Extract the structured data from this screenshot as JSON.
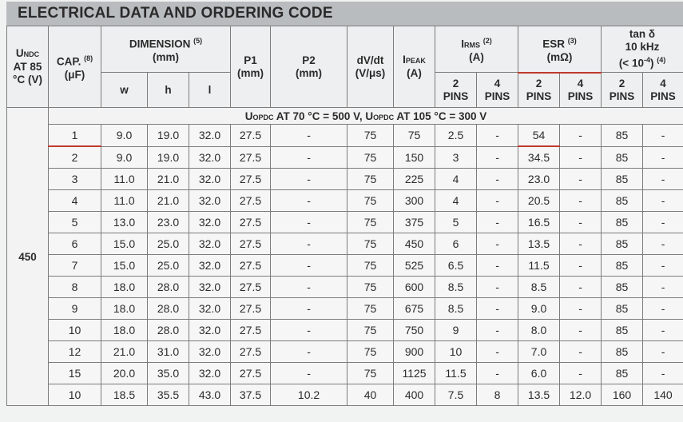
{
  "title": "ELECTRICAL DATA AND ORDERING CODE",
  "headers": {
    "undc": {
      "main": "U",
      "sub": "NDC",
      "rest": "AT 85 °C (V)"
    },
    "cap": {
      "label": "CAP.",
      "note": "(8)",
      "unit": "(μF)"
    },
    "dimension": {
      "label": "DIMENSION",
      "note": "(5)",
      "unit": "(mm)",
      "w": "w",
      "h": "h",
      "l": "l"
    },
    "p1": {
      "label": "P1",
      "unit": "(mm)"
    },
    "p2": {
      "label": "P2",
      "unit": "(mm)"
    },
    "dvdt": {
      "label": "dV/dt",
      "unit": "(V/μs)"
    },
    "ipeak": {
      "main": "I",
      "sub": "PEAK",
      "unit": "(A)"
    },
    "irms": {
      "main": "I",
      "sub": "RMS",
      "note": "(2)",
      "unit": "(A)"
    },
    "esr": {
      "label": "ESR",
      "note": "(3)",
      "unit": "(mΩ)"
    },
    "tan": {
      "label": "tan δ",
      "freq": "10 kHz",
      "unit_pre": "(< 10",
      "unit_exp": "-4",
      "unit_post": ")",
      "note": "(4)"
    },
    "pins2": "2 PINS",
    "pins4": "4 PINS"
  },
  "condition": {
    "u1": "U",
    "s1": "OPDC",
    "t1": " AT 70 °C = 500 V, ",
    "u2": "U",
    "s2": "OPDC",
    "t2": " AT 105 °C = 300 V"
  },
  "voltage": "450",
  "rows": [
    {
      "cap": "1",
      "w": "9.0",
      "h": "19.0",
      "l": "32.0",
      "p1": "27.5",
      "p2": "-",
      "dvdt": "75",
      "ipeak": "75",
      "irms2": "2.5",
      "irms4": "-",
      "esr2": "54",
      "esr4": "-",
      "tan2": "85",
      "tan4": "-"
    },
    {
      "cap": "2",
      "w": "9.0",
      "h": "19.0",
      "l": "32.0",
      "p1": "27.5",
      "p2": "-",
      "dvdt": "75",
      "ipeak": "150",
      "irms2": "3",
      "irms4": "-",
      "esr2": "34.5",
      "esr4": "-",
      "tan2": "85",
      "tan4": "-"
    },
    {
      "cap": "3",
      "w": "11.0",
      "h": "21.0",
      "l": "32.0",
      "p1": "27.5",
      "p2": "-",
      "dvdt": "75",
      "ipeak": "225",
      "irms2": "4",
      "irms4": "-",
      "esr2": "23.0",
      "esr4": "-",
      "tan2": "85",
      "tan4": "-"
    },
    {
      "cap": "4",
      "w": "11.0",
      "h": "21.0",
      "l": "32.0",
      "p1": "27.5",
      "p2": "-",
      "dvdt": "75",
      "ipeak": "300",
      "irms2": "4",
      "irms4": "-",
      "esr2": "20.5",
      "esr4": "-",
      "tan2": "85",
      "tan4": "-"
    },
    {
      "cap": "5",
      "w": "13.0",
      "h": "23.0",
      "l": "32.0",
      "p1": "27.5",
      "p2": "-",
      "dvdt": "75",
      "ipeak": "375",
      "irms2": "5",
      "irms4": "-",
      "esr2": "16.5",
      "esr4": "-",
      "tan2": "85",
      "tan4": "-"
    },
    {
      "cap": "6",
      "w": "15.0",
      "h": "25.0",
      "l": "32.0",
      "p1": "27.5",
      "p2": "-",
      "dvdt": "75",
      "ipeak": "450",
      "irms2": "6",
      "irms4": "-",
      "esr2": "13.5",
      "esr4": "-",
      "tan2": "85",
      "tan4": "-"
    },
    {
      "cap": "7",
      "w": "15.0",
      "h": "25.0",
      "l": "32.0",
      "p1": "27.5",
      "p2": "-",
      "dvdt": "75",
      "ipeak": "525",
      "irms2": "6.5",
      "irms4": "-",
      "esr2": "11.5",
      "esr4": "-",
      "tan2": "85",
      "tan4": "-"
    },
    {
      "cap": "8",
      "w": "18.0",
      "h": "28.0",
      "l": "32.0",
      "p1": "27.5",
      "p2": "-",
      "dvdt": "75",
      "ipeak": "600",
      "irms2": "8.5",
      "irms4": "-",
      "esr2": "8.5",
      "esr4": "-",
      "tan2": "85",
      "tan4": "-"
    },
    {
      "cap": "9",
      "w": "18.0",
      "h": "28.0",
      "l": "32.0",
      "p1": "27.5",
      "p2": "-",
      "dvdt": "75",
      "ipeak": "675",
      "irms2": "8.5",
      "irms4": "-",
      "esr2": "9.0",
      "esr4": "-",
      "tan2": "85",
      "tan4": "-"
    },
    {
      "cap": "10",
      "w": "18.0",
      "h": "28.0",
      "l": "32.0",
      "p1": "27.5",
      "p2": "-",
      "dvdt": "75",
      "ipeak": "750",
      "irms2": "9",
      "irms4": "-",
      "esr2": "8.0",
      "esr4": "-",
      "tan2": "85",
      "tan4": "-"
    },
    {
      "cap": "12",
      "w": "21.0",
      "h": "31.0",
      "l": "32.0",
      "p1": "27.5",
      "p2": "-",
      "dvdt": "75",
      "ipeak": "900",
      "irms2": "10",
      "irms4": "-",
      "esr2": "7.0",
      "esr4": "-",
      "tan2": "85",
      "tan4": "-"
    },
    {
      "cap": "15",
      "w": "20.0",
      "h": "35.0",
      "l": "32.0",
      "p1": "27.5",
      "p2": "-",
      "dvdt": "75",
      "ipeak": "1125",
      "irms2": "11.5",
      "irms4": "-",
      "esr2": "6.0",
      "esr4": "-",
      "tan2": "85",
      "tan4": "-"
    },
    {
      "cap": "10",
      "w": "18.5",
      "h": "35.5",
      "l": "43.0",
      "p1": "37.5",
      "p2": "10.2",
      "dvdt": "40",
      "ipeak": "400",
      "irms2": "7.5",
      "irms4": "8",
      "esr2": "13.5",
      "esr4": "12.0",
      "tan2": "160",
      "tan4": "140"
    }
  ]
}
